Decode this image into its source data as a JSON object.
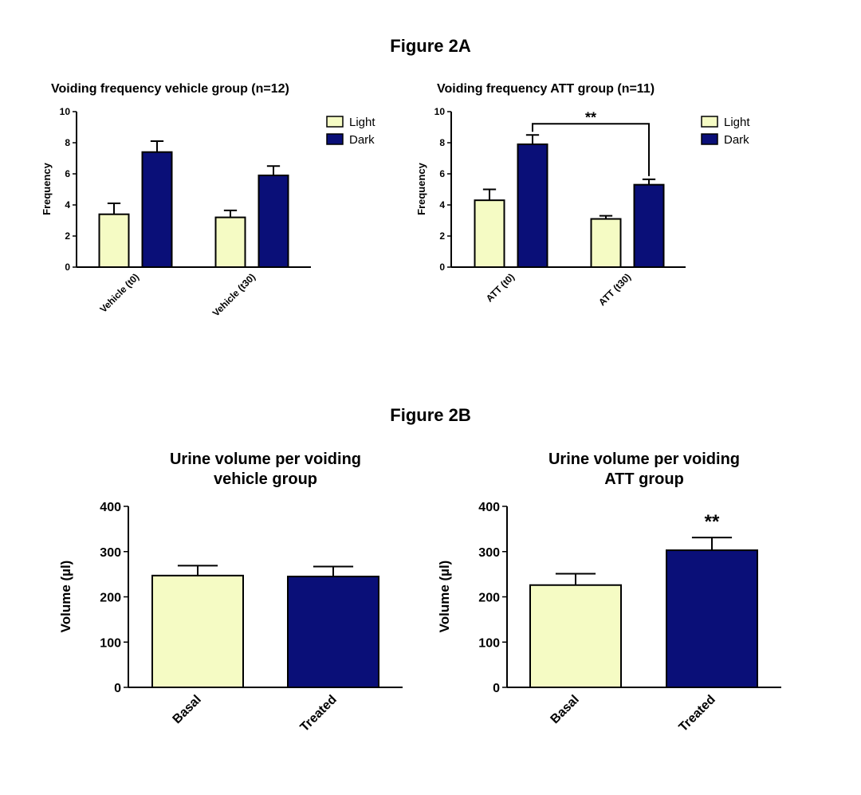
{
  "figure_a_title": "Figure 2A",
  "figure_b_title": "Figure 2B",
  "colors": {
    "light": "#f5fbc4",
    "dark": "#0a0f78",
    "stroke": "#000000"
  },
  "chart_data": [
    {
      "type": "bar",
      "title": "Voiding frequency vehicle group (n=12)",
      "xlabel": "",
      "ylabel": "Frequency",
      "ylim": [
        0,
        10
      ],
      "yticks": [
        0,
        2,
        4,
        6,
        8,
        10
      ],
      "categories": [
        "Vehicle (t0)",
        "Vehicle (t30)"
      ],
      "series": [
        {
          "name": "Light",
          "values": [
            3.4,
            3.2
          ],
          "errors": [
            0.7,
            0.45
          ]
        },
        {
          "name": "Dark",
          "values": [
            7.4,
            5.9
          ],
          "errors": [
            0.7,
            0.6
          ]
        }
      ],
      "legend": "top-right",
      "annotations": []
    },
    {
      "type": "bar",
      "title": "Voiding frequency ATT group (n=11)",
      "xlabel": "",
      "ylabel": "Frequency",
      "ylim": [
        0,
        10
      ],
      "yticks": [
        0,
        2,
        4,
        6,
        8,
        10
      ],
      "categories": [
        "ATT (t0)",
        "ATT (t30)"
      ],
      "series": [
        {
          "name": "Light",
          "values": [
            4.3,
            3.1
          ],
          "errors": [
            0.7,
            0.2
          ]
        },
        {
          "name": "Dark",
          "values": [
            7.9,
            5.3
          ],
          "errors": [
            0.6,
            0.35
          ]
        }
      ],
      "legend": "top-right",
      "annotations": [
        {
          "text": "**",
          "type": "bracket",
          "from": [
            "ATT (t0)",
            "Dark"
          ],
          "to": [
            "ATT (t30)",
            "Dark"
          ]
        }
      ]
    },
    {
      "type": "bar",
      "title": "Urine volume per voiding\nvehicle group",
      "xlabel": "",
      "ylabel": "Volume (µl)",
      "ylim": [
        0,
        400
      ],
      "yticks": [
        0,
        100,
        200,
        300,
        400
      ],
      "categories": [
        "Basal",
        "Treated"
      ],
      "values": [
        247,
        245
      ],
      "errors": [
        22,
        22
      ],
      "bar_colors": [
        "light",
        "dark"
      ],
      "annotations": []
    },
    {
      "type": "bar",
      "title": "Urine volume per voiding\nATT group",
      "xlabel": "",
      "ylabel": "Volume (µl)",
      "ylim": [
        0,
        400
      ],
      "yticks": [
        0,
        100,
        200,
        300,
        400
      ],
      "categories": [
        "Basal",
        "Treated"
      ],
      "values": [
        226,
        303
      ],
      "errors": [
        25,
        28
      ],
      "bar_colors": [
        "light",
        "dark"
      ],
      "annotations": [
        {
          "text": "**",
          "type": "above",
          "category": "Treated"
        }
      ]
    }
  ]
}
